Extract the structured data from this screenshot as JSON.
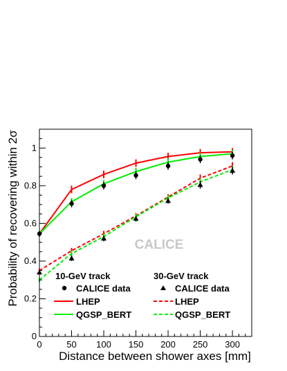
{
  "chart_data": {
    "type": "line",
    "xlabel": "Distance between shower axes [mm]",
    "ylabel": "Probability of recovering within 2σ",
    "xlim": [
      0,
      330
    ],
    "ylim": [
      0,
      1.1
    ],
    "xticks": [
      0,
      50,
      100,
      150,
      200,
      250,
      300
    ],
    "yticks": [
      0,
      0.2,
      0.4,
      0.6,
      0.8,
      1
    ],
    "ytick_labels": [
      "0",
      "0.2",
      "0.4",
      "0.6",
      "0.8",
      "1"
    ],
    "watermark": "CALICE",
    "legend": {
      "group1_title": "10-GeV track",
      "group2_title": "30-GeV track",
      "data_label": "CALICE data",
      "lhep_label": "LHEP",
      "qgsp_label": "QGSP_BERT"
    },
    "x": [
      0,
      50,
      100,
      150,
      200,
      250,
      300
    ],
    "series": [
      {
        "name": "CALICE data",
        "group": "10-GeV track",
        "kind": "data",
        "marker": "circle",
        "color": "#000000",
        "values": [
          0.545,
          0.705,
          0.8,
          0.855,
          0.905,
          0.94,
          0.96
        ],
        "errors": [
          0.015,
          0.02,
          0.02,
          0.02,
          0.02,
          0.02,
          0.02
        ]
      },
      {
        "name": "LHEP",
        "group": "10-GeV track",
        "kind": "model",
        "style": "solid",
        "color": "#ff0000",
        "values": [
          0.545,
          0.78,
          0.86,
          0.92,
          0.955,
          0.975,
          0.98
        ],
        "errors": [
          0.01,
          0.02,
          0.02,
          0.02,
          0.02,
          0.02,
          0.02
        ]
      },
      {
        "name": "QGSP_BERT",
        "group": "10-GeV track",
        "kind": "model",
        "style": "solid",
        "color": "#00ee00",
        "values": [
          0.545,
          0.715,
          0.81,
          0.875,
          0.925,
          0.955,
          0.97
        ],
        "errors": [
          0.01,
          0.02,
          0.02,
          0.02,
          0.02,
          0.02,
          0.02
        ]
      },
      {
        "name": "CALICE data",
        "group": "30-GeV track",
        "kind": "data",
        "marker": "triangle",
        "color": "#000000",
        "values": [
          0.34,
          0.415,
          0.52,
          0.625,
          0.72,
          0.805,
          0.88
        ],
        "errors": [
          0.01,
          0.015,
          0.015,
          0.015,
          0.015,
          0.02,
          0.02
        ]
      },
      {
        "name": "LHEP",
        "group": "30-GeV track",
        "kind": "model",
        "style": "dashed",
        "color": "#ff0000",
        "values": [
          0.35,
          0.455,
          0.545,
          0.64,
          0.74,
          0.84,
          0.905
        ],
        "errors": [
          0.01,
          0.015,
          0.015,
          0.015,
          0.015,
          0.02,
          0.02
        ]
      },
      {
        "name": "QGSP_BERT",
        "group": "30-GeV track",
        "kind": "model",
        "style": "dashed",
        "color": "#00ee00",
        "values": [
          0.3,
          0.44,
          0.53,
          0.635,
          0.735,
          0.82,
          0.885
        ],
        "errors": [
          0.01,
          0.015,
          0.015,
          0.015,
          0.015,
          0.02,
          0.02
        ]
      }
    ]
  }
}
